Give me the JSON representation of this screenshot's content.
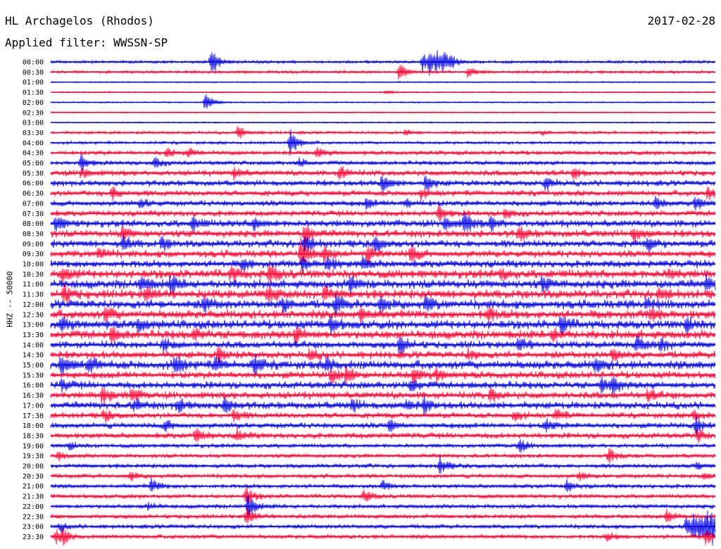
{
  "header": {
    "station": "HL Archagelos (Rhodos)",
    "filter": "Applied filter: WWSSN-SP",
    "date": "2017-02-28"
  },
  "chart_data": {
    "type": "line",
    "title": "HL Archagelos (Rhodos)",
    "subtitle": "Applied filter: WWSSN-SP",
    "ylabel": "HHZ -- 50000",
    "xlabel": "",
    "grid": false,
    "colors": {
      "even": "#0000e6",
      "odd": "#ff0030"
    },
    "rows": [
      {
        "label": "00:00",
        "noise": 2,
        "events": [
          [
            300,
            22
          ],
          [
            600,
            14
          ],
          [
            610,
            13
          ],
          [
            620,
            12
          ],
          [
            630,
            10
          ],
          [
            640,
            7
          ]
        ]
      },
      {
        "label": "00:30",
        "noise": 2,
        "events": [
          [
            567,
            12
          ],
          [
            665,
            8
          ]
        ]
      },
      {
        "label": "01:00",
        "noise": 1,
        "events": []
      },
      {
        "label": "01:30",
        "noise": 1,
        "events": [
          [
            548,
            3
          ]
        ]
      },
      {
        "label": "02:00",
        "noise": 1,
        "events": [
          [
            292,
            14
          ]
        ]
      },
      {
        "label": "02:30",
        "noise": 1,
        "events": []
      },
      {
        "label": "03:00",
        "noise": 1,
        "events": []
      },
      {
        "label": "03:30",
        "noise": 2,
        "events": [
          [
            338,
            10
          ],
          [
            575,
            4
          ],
          [
            770,
            3
          ]
        ]
      },
      {
        "label": "04:00",
        "noise": 2,
        "events": [
          [
            412,
            22
          ]
        ]
      },
      {
        "label": "04:30",
        "noise": 3,
        "events": [
          [
            237,
            8
          ],
          [
            268,
            6
          ],
          [
            450,
            8
          ]
        ]
      },
      {
        "label": "05:00",
        "noise": 3,
        "events": [
          [
            115,
            12
          ],
          [
            220,
            8
          ],
          [
            425,
            6
          ]
        ]
      },
      {
        "label": "05:30",
        "noise": 4,
        "events": [
          [
            116,
            8
          ],
          [
            333,
            8
          ],
          [
            483,
            10
          ],
          [
            815,
            7
          ]
        ]
      },
      {
        "label": "06:00",
        "noise": 4,
        "events": [
          [
            543,
            14
          ],
          [
            605,
            10
          ],
          [
            775,
            10
          ]
        ]
      },
      {
        "label": "06:30",
        "noise": 4,
        "events": [
          [
            160,
            9
          ],
          [
            598,
            7
          ],
          [
            1005,
            9
          ]
        ]
      },
      {
        "label": "07:00",
        "noise": 4,
        "events": [
          [
            200,
            7
          ],
          [
            520,
            7
          ],
          [
            577,
            7
          ],
          [
            930,
            9
          ],
          [
            988,
            10
          ]
        ]
      },
      {
        "label": "07:30",
        "noise": 4,
        "events": [
          [
            623,
            12
          ],
          [
            717,
            7
          ]
        ]
      },
      {
        "label": "08:00",
        "noise": 5,
        "events": [
          [
            80,
            10
          ],
          [
            274,
            10
          ],
          [
            360,
            9
          ],
          [
            632,
            9
          ],
          [
            660,
            16
          ],
          [
            697,
            9
          ]
        ]
      },
      {
        "label": "08:30",
        "noise": 5,
        "events": [
          [
            173,
            9
          ],
          [
            433,
            14
          ],
          [
            737,
            10
          ],
          [
            900,
            10
          ]
        ]
      },
      {
        "label": "09:00",
        "noise": 5,
        "events": [
          [
            175,
            10
          ],
          [
            230,
            9
          ],
          [
            432,
            12
          ],
          [
            532,
            10
          ],
          [
            920,
            8
          ]
        ]
      },
      {
        "label": "09:30",
        "noise": 5,
        "events": [
          [
            140,
            10
          ],
          [
            427,
            24
          ],
          [
            460,
            13
          ],
          [
            522,
            12
          ],
          [
            583,
            14
          ]
        ]
      },
      {
        "label": "10:00",
        "noise": 5,
        "events": [
          [
            345,
            8
          ],
          [
            430,
            10
          ],
          [
            465,
            11
          ],
          [
            515,
            9
          ]
        ]
      },
      {
        "label": "10:30",
        "noise": 6,
        "events": [
          [
            88,
            11
          ],
          [
            328,
            10
          ],
          [
            383,
            13
          ],
          [
            712,
            8
          ],
          [
            950,
            7
          ]
        ]
      },
      {
        "label": "11:00",
        "noise": 6,
        "events": [
          [
            200,
            11
          ],
          [
            242,
            12
          ],
          [
            498,
            12
          ],
          [
            770,
            9
          ],
          [
            1003,
            9
          ]
        ]
      },
      {
        "label": "11:30",
        "noise": 6,
        "events": [
          [
            90,
            14
          ],
          [
            207,
            10
          ],
          [
            380,
            12
          ],
          [
            461,
            10
          ],
          [
            935,
            9
          ]
        ]
      },
      {
        "label": "12:00",
        "noise": 6,
        "events": [
          [
            290,
            10
          ],
          [
            402,
            9
          ],
          [
            476,
            13
          ],
          [
            540,
            9
          ],
          [
            604,
            11
          ],
          [
            918,
            9
          ]
        ]
      },
      {
        "label": "12:30",
        "noise": 6,
        "events": [
          [
            150,
            10
          ],
          [
            512,
            11
          ],
          [
            692,
            11
          ],
          [
            925,
            10
          ]
        ]
      },
      {
        "label": "13:00",
        "noise": 6,
        "events": [
          [
            87,
            10
          ],
          [
            196,
            9
          ],
          [
            470,
            11
          ],
          [
            797,
            13
          ],
          [
            975,
            10
          ]
        ]
      },
      {
        "label": "13:30",
        "noise": 6,
        "events": [
          [
            158,
            10
          ],
          [
            276,
            9
          ],
          [
            420,
            11
          ],
          [
            785,
            8
          ]
        ]
      },
      {
        "label": "14:00",
        "noise": 5,
        "events": [
          [
            232,
            9
          ],
          [
            568,
            13
          ],
          [
            737,
            10
          ],
          [
            905,
            11
          ],
          [
            938,
            9
          ]
        ]
      },
      {
        "label": "14:30",
        "noise": 5,
        "events": [
          [
            310,
            10
          ],
          [
            440,
            7
          ],
          [
            665,
            7
          ],
          [
            870,
            10
          ]
        ]
      },
      {
        "label": "15:00",
        "noise": 6,
        "events": [
          [
            87,
            16
          ],
          [
            127,
            10
          ],
          [
            248,
            14
          ],
          [
            305,
            9
          ],
          [
            360,
            13
          ],
          [
            465,
            10
          ],
          [
            845,
            10
          ]
        ]
      },
      {
        "label": "15:30",
        "noise": 5,
        "events": [
          [
            470,
            10
          ],
          [
            492,
            12
          ],
          [
            587,
            11
          ],
          [
            620,
            8
          ]
        ]
      },
      {
        "label": "16:00",
        "noise": 5,
        "events": [
          [
            88,
            8
          ],
          [
            583,
            10
          ],
          [
            855,
            12
          ],
          [
            870,
            9
          ]
        ]
      },
      {
        "label": "16:30",
        "noise": 5,
        "events": [
          [
            145,
            14
          ],
          [
            187,
            9
          ],
          [
            697,
            9
          ],
          [
            920,
            7
          ]
        ]
      },
      {
        "label": "17:00",
        "noise": 5,
        "events": [
          [
            190,
            9
          ],
          [
            252,
            10
          ],
          [
            320,
            11
          ],
          [
            500,
            9
          ],
          [
            577,
            8
          ],
          [
            602,
            9
          ]
        ]
      },
      {
        "label": "17:30",
        "noise": 4,
        "events": [
          [
            148,
            8
          ],
          [
            332,
            9
          ],
          [
            730,
            8
          ],
          [
            790,
            9
          ],
          [
            985,
            10
          ]
        ]
      },
      {
        "label": "18:00",
        "noise": 4,
        "events": [
          [
            235,
            8
          ],
          [
            553,
            8
          ],
          [
            775,
            10
          ],
          [
            988,
            12
          ]
        ]
      },
      {
        "label": "18:30",
        "noise": 4,
        "events": [
          [
            278,
            10
          ],
          [
            337,
            8
          ],
          [
            990,
            9
          ]
        ]
      },
      {
        "label": "19:00",
        "noise": 3,
        "events": [
          [
            98,
            6
          ],
          [
            737,
            10
          ]
        ]
      },
      {
        "label": "19:30",
        "noise": 3,
        "events": [
          [
            83,
            6
          ],
          [
            865,
            10
          ]
        ]
      },
      {
        "label": "20:00",
        "noise": 3,
        "events": [
          [
            625,
            12
          ],
          [
            990,
            6
          ]
        ]
      },
      {
        "label": "20:30",
        "noise": 3,
        "events": [
          [
            185,
            6
          ],
          [
            822,
            7
          ],
          [
            1000,
            6
          ]
        ]
      },
      {
        "label": "21:00",
        "noise": 3,
        "events": [
          [
            215,
            10
          ],
          [
            543,
            7
          ],
          [
            805,
            7
          ]
        ]
      },
      {
        "label": "21:30",
        "noise": 3,
        "events": [
          [
            350,
            14
          ],
          [
            517,
            10
          ]
        ]
      },
      {
        "label": "22:00",
        "noise": 3,
        "events": [
          [
            352,
            18
          ],
          [
            210,
            5
          ]
        ]
      },
      {
        "label": "22:30",
        "noise": 3,
        "events": [
          [
            350,
            14
          ],
          [
            947,
            9
          ]
        ]
      },
      {
        "label": "23:00",
        "noise": 3,
        "events": [
          [
            86,
            6
          ],
          [
            975,
            14
          ],
          [
            985,
            16
          ],
          [
            995,
            16
          ],
          [
            1005,
            15
          ],
          [
            1012,
            14
          ]
        ]
      },
      {
        "label": "23:30",
        "noise": 3,
        "events": [
          [
            80,
            10
          ],
          [
            90,
            8
          ],
          [
            862,
            6
          ],
          [
            1002,
            12
          ]
        ]
      }
    ]
  }
}
